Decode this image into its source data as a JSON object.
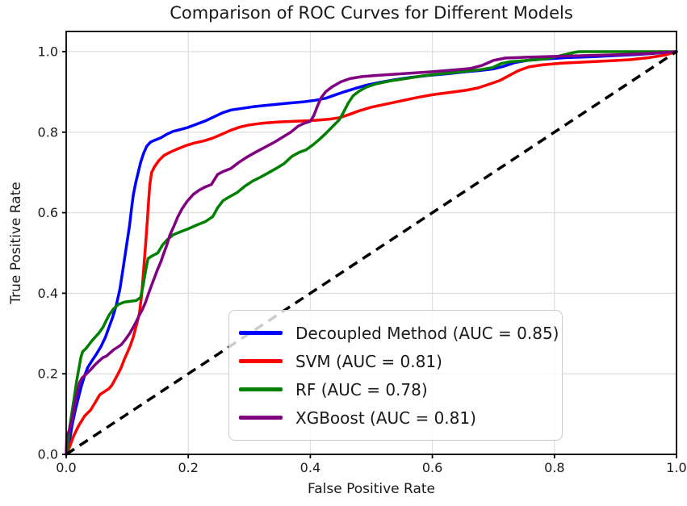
{
  "title": "Comparison of ROC Curves for Different Models",
  "chart_data": {
    "type": "line",
    "subtype": "roc-curves",
    "title": "Comparison of ROC Curves for Different Models",
    "xlabel": "False Positive Rate",
    "ylabel": "True Positive Rate",
    "xlim": [
      0.0,
      1.0
    ],
    "ylim": [
      0.0,
      1.05
    ],
    "grid": true,
    "grid_color": "#e0e0e0",
    "background_color": "#ffffff",
    "legend_position": "lower right (inside axes)",
    "x_ticks": [
      0.0,
      0.2,
      0.4,
      0.6,
      0.8,
      1.0
    ],
    "y_ticks": [
      0.0,
      0.2,
      0.4,
      0.6,
      0.8,
      1.0
    ],
    "x_tick_labels": [
      "0.0",
      "0.2",
      "0.4",
      "0.6",
      "0.8",
      "1.0"
    ],
    "y_tick_labels": [
      "0.0",
      "0.2",
      "0.4",
      "0.6",
      "0.8",
      "1.0"
    ],
    "series": [
      {
        "name": "Decoupled Method",
        "auc": 0.85,
        "label": "Decoupled Method (AUC = 0.85)",
        "color": "#0000ff",
        "points": [
          [
            0,
            0
          ],
          [
            0.005,
            0.03
          ],
          [
            0.01,
            0.075
          ],
          [
            0.015,
            0.11
          ],
          [
            0.02,
            0.14
          ],
          [
            0.025,
            0.17
          ],
          [
            0.03,
            0.195
          ],
          [
            0.035,
            0.215
          ],
          [
            0.042,
            0.232
          ],
          [
            0.05,
            0.25
          ],
          [
            0.057,
            0.268
          ],
          [
            0.064,
            0.29
          ],
          [
            0.07,
            0.315
          ],
          [
            0.076,
            0.34
          ],
          [
            0.082,
            0.37
          ],
          [
            0.088,
            0.41
          ],
          [
            0.092,
            0.45
          ],
          [
            0.096,
            0.49
          ],
          [
            0.1,
            0.53
          ],
          [
            0.104,
            0.57
          ],
          [
            0.107,
            0.61
          ],
          [
            0.11,
            0.645
          ],
          [
            0.114,
            0.675
          ],
          [
            0.118,
            0.7
          ],
          [
            0.122,
            0.725
          ],
          [
            0.127,
            0.748
          ],
          [
            0.132,
            0.765
          ],
          [
            0.138,
            0.775
          ],
          [
            0.145,
            0.78
          ],
          [
            0.155,
            0.786
          ],
          [
            0.165,
            0.795
          ],
          [
            0.175,
            0.802
          ],
          [
            0.188,
            0.807
          ],
          [
            0.2,
            0.812
          ],
          [
            0.214,
            0.82
          ],
          [
            0.228,
            0.828
          ],
          [
            0.242,
            0.838
          ],
          [
            0.256,
            0.848
          ],
          [
            0.27,
            0.855
          ],
          [
            0.288,
            0.859
          ],
          [
            0.306,
            0.863
          ],
          [
            0.325,
            0.866
          ],
          [
            0.345,
            0.869
          ],
          [
            0.365,
            0.872
          ],
          [
            0.388,
            0.875
          ],
          [
            0.408,
            0.879
          ],
          [
            0.425,
            0.884
          ],
          [
            0.44,
            0.892
          ],
          [
            0.455,
            0.9
          ],
          [
            0.472,
            0.908
          ],
          [
            0.49,
            0.916
          ],
          [
            0.512,
            0.923
          ],
          [
            0.538,
            0.93
          ],
          [
            0.565,
            0.936
          ],
          [
            0.595,
            0.941
          ],
          [
            0.625,
            0.945
          ],
          [
            0.655,
            0.95
          ],
          [
            0.678,
            0.953
          ],
          [
            0.7,
            0.957
          ],
          [
            0.718,
            0.964
          ],
          [
            0.736,
            0.973
          ],
          [
            0.755,
            0.978
          ],
          [
            0.78,
            0.981
          ],
          [
            0.82,
            0.985
          ],
          [
            0.86,
            0.987
          ],
          [
            0.9,
            0.99
          ],
          [
            0.94,
            0.993
          ],
          [
            1,
            1
          ]
        ]
      },
      {
        "name": "SVM",
        "auc": 0.81,
        "label": "SVM (AUC = 0.81)",
        "color": "#ff0000",
        "points": [
          [
            0,
            0
          ],
          [
            0.006,
            0.02
          ],
          [
            0.012,
            0.045
          ],
          [
            0.02,
            0.07
          ],
          [
            0.03,
            0.095
          ],
          [
            0.04,
            0.11
          ],
          [
            0.048,
            0.13
          ],
          [
            0.055,
            0.148
          ],
          [
            0.062,
            0.155
          ],
          [
            0.07,
            0.163
          ],
          [
            0.075,
            0.172
          ],
          [
            0.08,
            0.186
          ],
          [
            0.085,
            0.2
          ],
          [
            0.09,
            0.215
          ],
          [
            0.095,
            0.235
          ],
          [
            0.1,
            0.252
          ],
          [
            0.105,
            0.27
          ],
          [
            0.11,
            0.292
          ],
          [
            0.115,
            0.32
          ],
          [
            0.12,
            0.35
          ],
          [
            0.124,
            0.4
          ],
          [
            0.127,
            0.46
          ],
          [
            0.13,
            0.52
          ],
          [
            0.133,
            0.58
          ],
          [
            0.135,
            0.63
          ],
          [
            0.137,
            0.67
          ],
          [
            0.14,
            0.7
          ],
          [
            0.145,
            0.715
          ],
          [
            0.152,
            0.73
          ],
          [
            0.16,
            0.742
          ],
          [
            0.17,
            0.75
          ],
          [
            0.182,
            0.758
          ],
          [
            0.195,
            0.766
          ],
          [
            0.21,
            0.773
          ],
          [
            0.225,
            0.778
          ],
          [
            0.24,
            0.785
          ],
          [
            0.255,
            0.795
          ],
          [
            0.27,
            0.805
          ],
          [
            0.285,
            0.813
          ],
          [
            0.3,
            0.818
          ],
          [
            0.32,
            0.822
          ],
          [
            0.345,
            0.825
          ],
          [
            0.375,
            0.827
          ],
          [
            0.405,
            0.829
          ],
          [
            0.43,
            0.832
          ],
          [
            0.448,
            0.836
          ],
          [
            0.462,
            0.843
          ],
          [
            0.478,
            0.852
          ],
          [
            0.5,
            0.862
          ],
          [
            0.525,
            0.87
          ],
          [
            0.55,
            0.878
          ],
          [
            0.575,
            0.886
          ],
          [
            0.6,
            0.893
          ],
          [
            0.63,
            0.899
          ],
          [
            0.655,
            0.904
          ],
          [
            0.675,
            0.91
          ],
          [
            0.695,
            0.92
          ],
          [
            0.71,
            0.928
          ],
          [
            0.725,
            0.94
          ],
          [
            0.74,
            0.952
          ],
          [
            0.758,
            0.962
          ],
          [
            0.78,
            0.967
          ],
          [
            0.81,
            0.971
          ],
          [
            0.85,
            0.974
          ],
          [
            0.89,
            0.977
          ],
          [
            0.925,
            0.98
          ],
          [
            0.955,
            0.985
          ],
          [
            0.98,
            0.991
          ],
          [
            1,
            1
          ]
        ]
      },
      {
        "name": "RF",
        "auc": 0.78,
        "label": "RF (AUC = 0.78)",
        "color": "#008000",
        "points": [
          [
            0,
            0
          ],
          [
            0.003,
            0.03
          ],
          [
            0.006,
            0.07
          ],
          [
            0.009,
            0.1
          ],
          [
            0.012,
            0.13
          ],
          [
            0.015,
            0.16
          ],
          [
            0.018,
            0.19
          ],
          [
            0.021,
            0.215
          ],
          [
            0.024,
            0.24
          ],
          [
            0.027,
            0.255
          ],
          [
            0.032,
            0.262
          ],
          [
            0.037,
            0.272
          ],
          [
            0.042,
            0.282
          ],
          [
            0.048,
            0.292
          ],
          [
            0.054,
            0.302
          ],
          [
            0.06,
            0.315
          ],
          [
            0.065,
            0.33
          ],
          [
            0.07,
            0.345
          ],
          [
            0.077,
            0.36
          ],
          [
            0.085,
            0.372
          ],
          [
            0.095,
            0.378
          ],
          [
            0.105,
            0.38
          ],
          [
            0.115,
            0.382
          ],
          [
            0.122,
            0.39
          ],
          [
            0.126,
            0.42
          ],
          [
            0.13,
            0.455
          ],
          [
            0.134,
            0.486
          ],
          [
            0.14,
            0.492
          ],
          [
            0.15,
            0.5
          ],
          [
            0.158,
            0.52
          ],
          [
            0.165,
            0.532
          ],
          [
            0.175,
            0.545
          ],
          [
            0.188,
            0.553
          ],
          [
            0.2,
            0.56
          ],
          [
            0.215,
            0.57
          ],
          [
            0.228,
            0.578
          ],
          [
            0.24,
            0.59
          ],
          [
            0.248,
            0.612
          ],
          [
            0.257,
            0.63
          ],
          [
            0.268,
            0.64
          ],
          [
            0.28,
            0.65
          ],
          [
            0.292,
            0.665
          ],
          [
            0.305,
            0.678
          ],
          [
            0.318,
            0.688
          ],
          [
            0.33,
            0.698
          ],
          [
            0.344,
            0.71
          ],
          [
            0.357,
            0.722
          ],
          [
            0.37,
            0.74
          ],
          [
            0.382,
            0.75
          ],
          [
            0.393,
            0.756
          ],
          [
            0.404,
            0.768
          ],
          [
            0.415,
            0.782
          ],
          [
            0.426,
            0.798
          ],
          [
            0.437,
            0.815
          ],
          [
            0.447,
            0.83
          ],
          [
            0.454,
            0.848
          ],
          [
            0.462,
            0.872
          ],
          [
            0.47,
            0.89
          ],
          [
            0.48,
            0.902
          ],
          [
            0.492,
            0.912
          ],
          [
            0.508,
            0.92
          ],
          [
            0.53,
            0.927
          ],
          [
            0.556,
            0.933
          ],
          [
            0.585,
            0.94
          ],
          [
            0.615,
            0.945
          ],
          [
            0.648,
            0.95
          ],
          [
            0.678,
            0.955
          ],
          [
            0.698,
            0.96
          ],
          [
            0.712,
            0.97
          ],
          [
            0.728,
            0.975
          ],
          [
            0.755,
            0.978
          ],
          [
            0.785,
            0.982
          ],
          [
            0.81,
            0.99
          ],
          [
            0.832,
            0.998
          ],
          [
            0.84,
            1.0
          ],
          [
            1,
            1
          ]
        ]
      },
      {
        "name": "XGBoost",
        "auc": 0.81,
        "label": "XGBoost (AUC = 0.81)",
        "color": "#800080",
        "points": [
          [
            0,
            0
          ],
          [
            0.001,
            0.048
          ],
          [
            0.004,
            0.055
          ],
          [
            0.007,
            0.07
          ],
          [
            0.01,
            0.09
          ],
          [
            0.013,
            0.115
          ],
          [
            0.016,
            0.14
          ],
          [
            0.019,
            0.16
          ],
          [
            0.022,
            0.178
          ],
          [
            0.026,
            0.19
          ],
          [
            0.032,
            0.198
          ],
          [
            0.04,
            0.21
          ],
          [
            0.047,
            0.222
          ],
          [
            0.054,
            0.232
          ],
          [
            0.06,
            0.24
          ],
          [
            0.066,
            0.244
          ],
          [
            0.072,
            0.252
          ],
          [
            0.078,
            0.26
          ],
          [
            0.084,
            0.266
          ],
          [
            0.09,
            0.272
          ],
          [
            0.097,
            0.285
          ],
          [
            0.104,
            0.3
          ],
          [
            0.11,
            0.316
          ],
          [
            0.115,
            0.33
          ],
          [
            0.12,
            0.346
          ],
          [
            0.125,
            0.36
          ],
          [
            0.13,
            0.378
          ],
          [
            0.135,
            0.4
          ],
          [
            0.14,
            0.42
          ],
          [
            0.145,
            0.44
          ],
          [
            0.15,
            0.46
          ],
          [
            0.155,
            0.478
          ],
          [
            0.16,
            0.5
          ],
          [
            0.165,
            0.52
          ],
          [
            0.17,
            0.545
          ],
          [
            0.176,
            0.565
          ],
          [
            0.183,
            0.59
          ],
          [
            0.19,
            0.61
          ],
          [
            0.198,
            0.628
          ],
          [
            0.208,
            0.645
          ],
          [
            0.218,
            0.656
          ],
          [
            0.228,
            0.664
          ],
          [
            0.238,
            0.67
          ],
          [
            0.248,
            0.695
          ],
          [
            0.258,
            0.703
          ],
          [
            0.27,
            0.71
          ],
          [
            0.283,
            0.725
          ],
          [
            0.296,
            0.738
          ],
          [
            0.31,
            0.75
          ],
          [
            0.325,
            0.762
          ],
          [
            0.34,
            0.774
          ],
          [
            0.355,
            0.788
          ],
          [
            0.368,
            0.8
          ],
          [
            0.38,
            0.815
          ],
          [
            0.39,
            0.822
          ],
          [
            0.4,
            0.827
          ],
          [
            0.406,
            0.842
          ],
          [
            0.412,
            0.866
          ],
          [
            0.418,
            0.886
          ],
          [
            0.425,
            0.9
          ],
          [
            0.435,
            0.912
          ],
          [
            0.45,
            0.925
          ],
          [
            0.465,
            0.933
          ],
          [
            0.485,
            0.938
          ],
          [
            0.51,
            0.941
          ],
          [
            0.54,
            0.944
          ],
          [
            0.57,
            0.947
          ],
          [
            0.6,
            0.95
          ],
          [
            0.632,
            0.954
          ],
          [
            0.662,
            0.958
          ],
          [
            0.682,
            0.966
          ],
          [
            0.7,
            0.978
          ],
          [
            0.72,
            0.984
          ],
          [
            0.755,
            0.986
          ],
          [
            0.8,
            0.988
          ],
          [
            0.85,
            0.99
          ],
          [
            0.9,
            0.992
          ],
          [
            0.95,
            0.995
          ],
          [
            1,
            1
          ]
        ]
      }
    ],
    "reference_line": {
      "name": "chance-diagonal",
      "color": "#000000",
      "style": "dashed",
      "points": [
        [
          0,
          0
        ],
        [
          1,
          1
        ]
      ]
    }
  }
}
